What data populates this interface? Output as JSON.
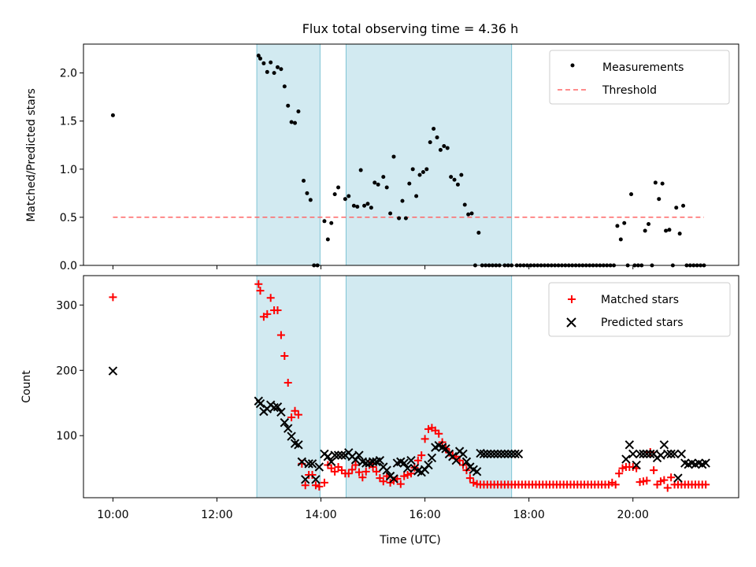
{
  "chart_data": {
    "type": "scatter",
    "title": "Flux total observing time = 4.36 h",
    "xlabel": "Time (UTC)",
    "xlim": [
      "09:26",
      "22:02"
    ],
    "xticks": [
      "10:00",
      "12:00",
      "14:00",
      "16:00",
      "18:00",
      "20:00"
    ],
    "shaded_intervals": [
      [
        "12:46",
        "13:59"
      ],
      [
        "14:29",
        "17:40"
      ]
    ],
    "shade_color": "#add8e6",
    "panels": [
      {
        "ylabel": "Matched/Predicted stars",
        "ylim": [
          0,
          2.3
        ],
        "yticks": [
          "0.0",
          "0.5",
          "1.0",
          "1.5",
          "2.0"
        ],
        "legend": "top-right",
        "series": [
          {
            "name": "Measurements",
            "style": "dots",
            "color": "#000000",
            "x": [
              "10:00",
              "12:48",
              "12:50",
              "12:54",
              "12:58",
              "13:02",
              "13:06",
              "13:10",
              "13:14",
              "13:18",
              "13:22",
              "13:26",
              "13:30",
              "13:34",
              "13:40",
              "13:44",
              "13:48",
              "13:52",
              "13:56",
              "14:04",
              "14:08",
              "14:12",
              "14:16",
              "14:20",
              "14:28",
              "14:32",
              "14:38",
              "14:42",
              "14:46",
              "14:50",
              "14:54",
              "14:58",
              "15:02",
              "15:06",
              "15:12",
              "15:16",
              "15:20",
              "15:24",
              "15:30",
              "15:34",
              "15:38",
              "15:42",
              "15:46",
              "15:50",
              "15:54",
              "15:58",
              "16:02",
              "16:06",
              "16:10",
              "16:14",
              "16:18",
              "16:22",
              "16:26",
              "16:30",
              "16:34",
              "16:38",
              "16:42",
              "16:46",
              "16:50",
              "16:54",
              "16:58",
              "17:02",
              "17:06",
              "17:10",
              "17:14",
              "17:18",
              "17:22",
              "17:26",
              "17:32",
              "17:36",
              "17:40",
              "17:46",
              "17:50",
              "17:54",
              "17:58",
              "18:02",
              "18:06",
              "18:10",
              "18:14",
              "18:18",
              "18:22",
              "18:26",
              "18:30",
              "18:34",
              "18:38",
              "18:42",
              "18:46",
              "18:50",
              "18:54",
              "18:58",
              "19:02",
              "19:06",
              "19:10",
              "19:14",
              "19:18",
              "19:22",
              "19:26",
              "19:30",
              "19:34",
              "19:38",
              "19:42",
              "19:46",
              "19:50",
              "19:54",
              "19:58",
              "20:02",
              "20:06",
              "20:10",
              "20:14",
              "20:18",
              "20:22",
              "20:26",
              "20:30",
              "20:34",
              "20:38",
              "20:42",
              "20:46",
              "20:50",
              "20:54",
              "20:58",
              "21:02",
              "21:06",
              "21:10",
              "21:14",
              "21:18",
              "21:22"
            ],
            "y": [
              1.56,
              2.18,
              2.15,
              2.1,
              2.01,
              2.11,
              2.0,
              2.06,
              2.04,
              1.86,
              1.66,
              1.49,
              1.48,
              1.6,
              0.88,
              0.75,
              0.68,
              0.0,
              0.0,
              0.46,
              0.27,
              0.44,
              0.74,
              0.81,
              0.69,
              0.72,
              0.62,
              0.61,
              0.99,
              0.62,
              0.64,
              0.6,
              0.86,
              0.84,
              0.92,
              0.81,
              0.54,
              1.13,
              0.49,
              0.67,
              0.49,
              0.85,
              1.0,
              0.72,
              0.94,
              0.97,
              1.0,
              1.28,
              1.42,
              1.33,
              1.2,
              1.24,
              1.22,
              0.92,
              0.89,
              0.84,
              0.94,
              0.63,
              0.53,
              0.54,
              0.0,
              0.34,
              0.0,
              0.0,
              0.0,
              0.0,
              0.0,
              0.0,
              0.0,
              0.0,
              0.0,
              0.0,
              0.0,
              0.0,
              0.0,
              0.0,
              0.0,
              0.0,
              0.0,
              0.0,
              0.0,
              0.0,
              0.0,
              0.0,
              0.0,
              0.0,
              0.0,
              0.0,
              0.0,
              0.0,
              0.0,
              0.0,
              0.0,
              0.0,
              0.0,
              0.0,
              0.0,
              0.0,
              0.0,
              0.0,
              0.41,
              0.27,
              0.44,
              0.0,
              0.74,
              0.0,
              0.0,
              0.0,
              0.36,
              0.43,
              0.0,
              0.86,
              0.69,
              0.85,
              0.36,
              0.37,
              0.0,
              0.6,
              0.33,
              0.62,
              0.0,
              0.0,
              0.0,
              0.0,
              0.0,
              0.0
            ]
          },
          {
            "name": "Threshold",
            "style": "dashed-line",
            "color": "#ff6666",
            "x": [
              "10:00",
              "21:22"
            ],
            "y": [
              0.5,
              0.5
            ]
          }
        ]
      },
      {
        "ylabel": "Count",
        "ylim": [
          5,
          345
        ],
        "yticks": [
          "100",
          "200",
          "300"
        ],
        "legend": "top-right",
        "series": [
          {
            "name": "Matched stars",
            "style": "plus",
            "color": "#ff0000",
            "x": [
              "10:00",
              "12:48",
              "12:50",
              "12:54",
              "12:58",
              "13:02",
              "13:06",
              "13:10",
              "13:14",
              "13:18",
              "13:22",
              "13:26",
              "13:30",
              "13:34",
              "13:38",
              "13:42",
              "13:46",
              "13:50",
              "13:54",
              "13:58",
              "14:04",
              "14:08",
              "14:12",
              "14:16",
              "14:20",
              "14:24",
              "14:28",
              "14:32",
              "14:36",
              "14:40",
              "14:44",
              "14:48",
              "14:52",
              "14:56",
              "15:00",
              "15:04",
              "15:08",
              "15:12",
              "15:16",
              "15:20",
              "15:24",
              "15:28",
              "15:32",
              "15:36",
              "15:40",
              "15:44",
              "15:48",
              "15:52",
              "15:56",
              "16:00",
              "16:04",
              "16:08",
              "16:12",
              "16:16",
              "16:20",
              "16:24",
              "16:28",
              "16:32",
              "16:36",
              "16:40",
              "16:44",
              "16:48",
              "16:52",
              "16:56",
              "17:00",
              "17:04",
              "17:08",
              "17:12",
              "17:16",
              "17:20",
              "17:24",
              "17:28",
              "17:32",
              "17:36",
              "17:40",
              "17:44",
              "17:48",
              "17:52",
              "17:56",
              "18:00",
              "18:04",
              "18:08",
              "18:12",
              "18:16",
              "18:20",
              "18:24",
              "18:28",
              "18:32",
              "18:36",
              "18:40",
              "18:44",
              "18:48",
              "18:52",
              "18:56",
              "19:00",
              "19:04",
              "19:08",
              "19:12",
              "19:16",
              "19:20",
              "19:24",
              "19:28",
              "19:32",
              "19:36",
              "19:40",
              "19:44",
              "19:48",
              "19:52",
              "19:56",
              "20:00",
              "20:04",
              "20:08",
              "20:12",
              "20:16",
              "20:20",
              "20:24",
              "20:28",
              "20:32",
              "20:36",
              "20:40",
              "20:44",
              "20:48",
              "20:52",
              "20:56",
              "21:00",
              "21:04",
              "21:08",
              "21:12",
              "21:16",
              "21:20",
              "21:24"
            ],
            "y": [
              312,
              332,
              322,
              282,
              286,
              311,
              292,
              292,
              254,
              222,
              181,
              128,
              138,
              132,
              57,
              24,
              40,
              40,
              24,
              22,
              28,
              55,
              50,
              45,
              52,
              47,
              42,
              42,
              48,
              55,
              44,
              36,
              45,
              55,
              52,
              45,
              35,
              30,
              38,
              28,
              31,
              34,
              26,
              38,
              40,
              42,
              51,
              62,
              70,
              95,
              110,
              112,
              108,
              103,
              90,
              80,
              74,
              70,
              68,
              62,
              55,
              47,
              35,
              28,
              26,
              25,
              25,
              25,
              25,
              25,
              25,
              25,
              25,
              25,
              25,
              25,
              25,
              25,
              25,
              25,
              25,
              25,
              25,
              25,
              25,
              25,
              25,
              25,
              25,
              25,
              25,
              25,
              25,
              25,
              25,
              25,
              25,
              25,
              25,
              25,
              25,
              25,
              25,
              28,
              25,
              42,
              50,
              52,
              52,
              52,
              50,
              29,
              30,
              31,
              75,
              47,
              25,
              30,
              32,
              20,
              36,
              25,
              25,
              25,
              25,
              25,
              25,
              25,
              25,
              25,
              25
            ]
          },
          {
            "name": "Predicted stars",
            "style": "x",
            "color": "#000000",
            "x": [
              "10:00",
              "12:48",
              "12:50",
              "12:54",
              "12:58",
              "13:02",
              "13:06",
              "13:10",
              "13:14",
              "13:18",
              "13:22",
              "13:26",
              "13:30",
              "13:34",
              "13:38",
              "13:42",
              "13:46",
              "13:50",
              "13:54",
              "13:58",
              "14:04",
              "14:08",
              "14:12",
              "14:16",
              "14:20",
              "14:24",
              "14:28",
              "14:32",
              "14:36",
              "14:40",
              "14:44",
              "14:48",
              "14:52",
              "14:56",
              "15:00",
              "15:04",
              "15:08",
              "15:12",
              "15:16",
              "15:20",
              "15:24",
              "15:28",
              "15:32",
              "15:36",
              "15:40",
              "15:44",
              "15:48",
              "15:52",
              "15:56",
              "16:00",
              "16:04",
              "16:08",
              "16:12",
              "16:16",
              "16:20",
              "16:24",
              "16:28",
              "16:32",
              "16:36",
              "16:40",
              "16:44",
              "16:48",
              "16:52",
              "16:56",
              "17:00",
              "17:04",
              "17:08",
              "17:12",
              "17:16",
              "17:20",
              "17:24",
              "17:28",
              "17:32",
              "17:36",
              "17:40",
              "17:44",
              "17:48",
              "19:52",
              "19:56",
              "20:00",
              "20:04",
              "20:08",
              "20:12",
              "20:16",
              "20:20",
              "20:24",
              "20:28",
              "20:32",
              "20:36",
              "20:40",
              "20:44",
              "20:48",
              "20:52",
              "20:56",
              "21:00",
              "21:04",
              "21:08",
              "21:12",
              "21:16",
              "21:20",
              "21:24"
            ],
            "y": [
              199,
              153,
              149,
              137,
              141,
              147,
              143,
              144,
              136,
              120,
              111,
              99,
              88,
              86,
              60,
              33,
              57,
              57,
              33,
              52,
              72,
              68,
              60,
              70,
              70,
              70,
              70,
              74,
              68,
              63,
              70,
              60,
              58,
              58,
              60,
              60,
              62,
              52,
              47,
              38,
              34,
              58,
              60,
              58,
              50,
              62,
              50,
              46,
              44,
              48,
              55,
              66,
              82,
              85,
              82,
              80,
              72,
              68,
              62,
              76,
              72,
              60,
              52,
              48,
              45,
              73,
              72,
              72,
              72,
              72,
              72,
              72,
              72,
              72,
              72,
              72,
              72,
              64,
              86,
              72,
              55,
              72,
              72,
              72,
              72,
              72,
              66,
              70,
              86,
              72,
              72,
              72,
              35,
              72,
              58,
              56,
              58,
              56,
              58,
              56,
              58
            ]
          }
        ]
      }
    ]
  }
}
